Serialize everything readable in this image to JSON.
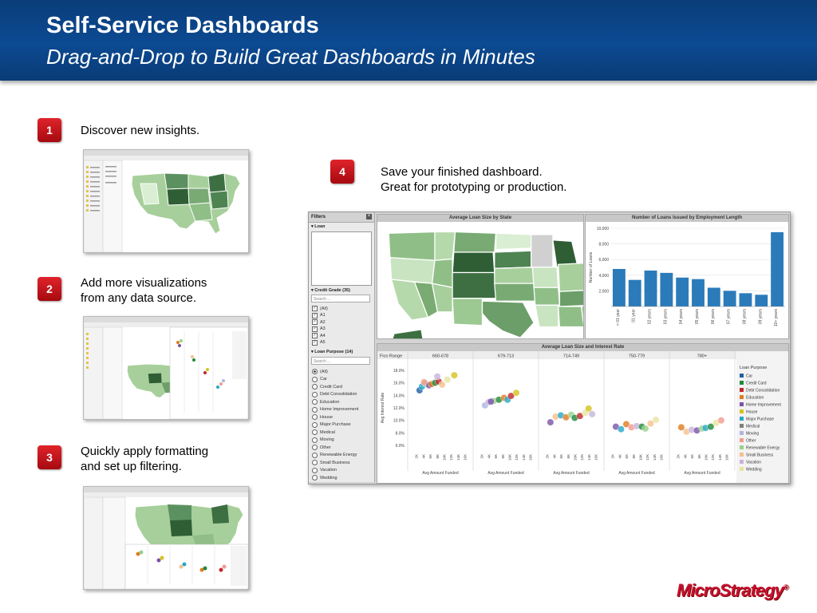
{
  "header": {
    "title": "Self-Service Dashboards",
    "subtitle": "Drag-and-Drop to Build Great Dashboards in Minutes"
  },
  "steps": [
    {
      "number": "1",
      "lines": [
        "Discover new insights."
      ]
    },
    {
      "number": "2",
      "lines": [
        "Add more visualizations",
        "from any data source."
      ]
    },
    {
      "number": "3",
      "lines": [
        "Quickly apply formatting",
        "and set up filtering."
      ]
    },
    {
      "number": "4",
      "lines": [
        "Save your finished dashboard.",
        "Great for prototyping or production."
      ]
    }
  ],
  "dashboard": {
    "filters": {
      "title": "Filters",
      "loan_header": "Loan",
      "credit_grade_header": "Credit Grade (35)",
      "search_placeholder": "Search ...",
      "credit_grade_items": [
        "(All)",
        "A1",
        "A2",
        "A3",
        "A4",
        "A5"
      ],
      "loan_purpose_header": "Loan Purpose (14)",
      "loan_purpose_items": [
        "(All)",
        "Car",
        "Credit Card",
        "Debt Consolidation",
        "Education",
        "Home Improvement",
        "House",
        "Major Purchase",
        "Medical",
        "Moving",
        "Other",
        "Renewable Energy",
        "Small Business",
        "Vacation",
        "Wedding"
      ]
    },
    "map_title": "Average Loan Size by State",
    "bar_title": "Number of Loans Issued by Employment Length",
    "scatter_title": "Average Loan Size and Interest Rate",
    "colors": {
      "bar": "#2b7bba",
      "map_dark": "#2f5e34",
      "map_light": "#d9eed2",
      "panel_header": "#c8c8c8"
    }
  },
  "chart_data": [
    {
      "type": "bar",
      "title": "Number of Loans Issued by Employment Length",
      "ylabel": "Number of Loans",
      "ylim": [
        0,
        10000
      ],
      "yticks": [
        "10,000",
        "8,000",
        "6,000",
        "4,000",
        "2,000"
      ],
      "categories": [
        "< 01 year",
        "01 year",
        "02 years",
        "03 years",
        "04 years",
        "05 years",
        "06 years",
        "07 years",
        "08 years",
        "09 years",
        "10+ years"
      ],
      "values": [
        4800,
        3400,
        4600,
        4300,
        3700,
        3500,
        2400,
        2000,
        1700,
        1500,
        9500
      ]
    },
    {
      "type": "scatter",
      "title": "Average Loan Size and Interest Rate",
      "ylabel": "Avg Interest Rate",
      "xlabel": "Avg Amount Funded",
      "panel_label": "Fico Range",
      "panels": [
        "660-678",
        "679-713",
        "714-749",
        "750-779",
        "780+"
      ],
      "yticks": [
        "18.0%",
        "16.0%",
        "14.0%",
        "12.0%",
        "10.0%",
        "8.0%",
        "6.0%"
      ],
      "ylim": [
        5,
        19
      ],
      "xticks": [
        "2K",
        "4K",
        "6K",
        "8K",
        "10K",
        "12K",
        "14K",
        "16K"
      ],
      "xlim": [
        0,
        17000
      ],
      "legend_title": "Loan Purpose",
      "legend": [
        {
          "name": "Car",
          "color": "#1f5fa8"
        },
        {
          "name": "Credit Card",
          "color": "#1f8a3a"
        },
        {
          "name": "Debt Consolidation",
          "color": "#c0272d"
        },
        {
          "name": "Education",
          "color": "#e07b20"
        },
        {
          "name": "Home Improvement",
          "color": "#7a52a8"
        },
        {
          "name": "House",
          "color": "#d6c21e"
        },
        {
          "name": "Major Purchase",
          "color": "#27a7c7"
        },
        {
          "name": "Medical",
          "color": "#7f7f7f"
        },
        {
          "name": "Moving",
          "color": "#a9b7e0"
        },
        {
          "name": "Other",
          "color": "#f29a8e"
        },
        {
          "name": "Renewable Energy",
          "color": "#98d18a"
        },
        {
          "name": "Small Business",
          "color": "#f5c08c"
        },
        {
          "name": "Vacation",
          "color": "#c7b3dc"
        },
        {
          "name": "Wedding",
          "color": "#e8e4a0"
        }
      ],
      "points": [
        {
          "panel": 0,
          "x": 2500,
          "y": 14.8,
          "c": 0
        },
        {
          "panel": 0,
          "x": 3200,
          "y": 15.4,
          "c": 6
        },
        {
          "panel": 0,
          "x": 4200,
          "y": 15.9,
          "c": 10
        },
        {
          "panel": 0,
          "x": 5200,
          "y": 15.6,
          "c": 4
        },
        {
          "panel": 0,
          "x": 6000,
          "y": 15.8,
          "c": 3
        },
        {
          "panel": 0,
          "x": 7000,
          "y": 16.0,
          "c": 1
        },
        {
          "panel": 0,
          "x": 8000,
          "y": 16.2,
          "c": 2
        },
        {
          "panel": 0,
          "x": 9000,
          "y": 15.7,
          "c": 11
        },
        {
          "panel": 0,
          "x": 10500,
          "y": 16.5,
          "c": 13
        },
        {
          "panel": 0,
          "x": 12500,
          "y": 17.2,
          "c": 5
        },
        {
          "panel": 0,
          "x": 3800,
          "y": 16.1,
          "c": 9
        },
        {
          "panel": 0,
          "x": 7600,
          "y": 17.0,
          "c": 12
        },
        {
          "panel": 1,
          "x": 2500,
          "y": 12.4,
          "c": 8
        },
        {
          "panel": 1,
          "x": 3500,
          "y": 12.9,
          "c": 12
        },
        {
          "panel": 1,
          "x": 5000,
          "y": 13.1,
          "c": 10
        },
        {
          "panel": 1,
          "x": 6500,
          "y": 13.3,
          "c": 1
        },
        {
          "panel": 1,
          "x": 8000,
          "y": 13.6,
          "c": 3
        },
        {
          "panel": 1,
          "x": 9000,
          "y": 13.3,
          "c": 6
        },
        {
          "panel": 1,
          "x": 10000,
          "y": 13.9,
          "c": 2
        },
        {
          "panel": 1,
          "x": 11500,
          "y": 14.4,
          "c": 5
        },
        {
          "panel": 1,
          "x": 4200,
          "y": 13.0,
          "c": 4
        },
        {
          "panel": 2,
          "x": 2500,
          "y": 9.7,
          "c": 4
        },
        {
          "panel": 2,
          "x": 4000,
          "y": 10.6,
          "c": 11
        },
        {
          "panel": 2,
          "x": 5500,
          "y": 10.8,
          "c": 6
        },
        {
          "panel": 2,
          "x": 7000,
          "y": 10.5,
          "c": 3
        },
        {
          "panel": 2,
          "x": 8500,
          "y": 10.9,
          "c": 10
        },
        {
          "panel": 2,
          "x": 9500,
          "y": 10.4,
          "c": 1
        },
        {
          "panel": 2,
          "x": 11000,
          "y": 10.7,
          "c": 2
        },
        {
          "panel": 2,
          "x": 12500,
          "y": 11.2,
          "c": 13
        },
        {
          "panel": 2,
          "x": 13500,
          "y": 11.9,
          "c": 5
        },
        {
          "panel": 2,
          "x": 14500,
          "y": 11.0,
          "c": 12
        },
        {
          "panel": 3,
          "x": 2500,
          "y": 9.0,
          "c": 4
        },
        {
          "panel": 3,
          "x": 4000,
          "y": 8.6,
          "c": 6
        },
        {
          "panel": 3,
          "x": 5500,
          "y": 9.4,
          "c": 3
        },
        {
          "panel": 3,
          "x": 7000,
          "y": 8.9,
          "c": 9
        },
        {
          "panel": 3,
          "x": 8500,
          "y": 9.1,
          "c": 12
        },
        {
          "panel": 3,
          "x": 10000,
          "y": 9.0,
          "c": 1
        },
        {
          "panel": 3,
          "x": 11000,
          "y": 8.7,
          "c": 10
        },
        {
          "panel": 3,
          "x": 12500,
          "y": 9.5,
          "c": 11
        },
        {
          "panel": 3,
          "x": 14000,
          "y": 10.1,
          "c": 13
        },
        {
          "panel": 4,
          "x": 2500,
          "y": 8.9,
          "c": 3
        },
        {
          "panel": 4,
          "x": 4000,
          "y": 8.2,
          "c": 11
        },
        {
          "panel": 4,
          "x": 5500,
          "y": 8.5,
          "c": 12
        },
        {
          "panel": 4,
          "x": 7000,
          "y": 8.4,
          "c": 4
        },
        {
          "panel": 4,
          "x": 8500,
          "y": 8.7,
          "c": 10
        },
        {
          "panel": 4,
          "x": 9500,
          "y": 8.8,
          "c": 6
        },
        {
          "panel": 4,
          "x": 11000,
          "y": 9.0,
          "c": 1
        },
        {
          "panel": 4,
          "x": 12500,
          "y": 9.6,
          "c": 13
        },
        {
          "panel": 4,
          "x": 14000,
          "y": 10.0,
          "c": 9
        }
      ]
    }
  ],
  "logo": {
    "text": "MicroStrategy",
    "mark": "®"
  }
}
